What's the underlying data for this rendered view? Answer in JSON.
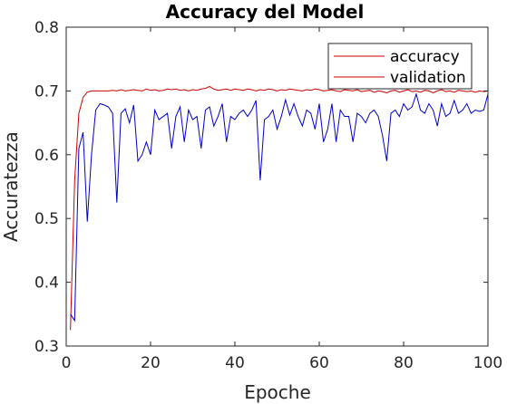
{
  "chart_data": {
    "type": "line",
    "title": "Accuracy del Model",
    "xlabel": "Epoche",
    "ylabel": "Accuratezza",
    "xlim": [
      0,
      100
    ],
    "ylim": [
      0.3,
      0.8
    ],
    "xticks": [
      0,
      20,
      40,
      60,
      80,
      100
    ],
    "yticks": [
      0.3,
      0.4,
      0.5,
      0.6,
      0.7,
      0.8
    ],
    "xtick_labels": [
      "0",
      "20",
      "40",
      "60",
      "80",
      "100"
    ],
    "ytick_labels": [
      "0.3",
      "0.4",
      "0.5",
      "0.6",
      "0.7",
      "0.8"
    ],
    "grid": false,
    "legend_position": "top-right",
    "series": [
      {
        "name": "accuracy",
        "color": "#cc0000",
        "x": [
          1,
          2,
          3,
          4,
          5,
          6,
          7,
          8,
          9,
          10,
          11,
          12,
          13,
          14,
          15,
          16,
          17,
          18,
          19,
          20,
          21,
          22,
          23,
          24,
          25,
          26,
          27,
          28,
          29,
          30,
          31,
          32,
          33,
          34,
          35,
          36,
          37,
          38,
          39,
          40,
          41,
          42,
          43,
          44,
          45,
          46,
          47,
          48,
          49,
          50,
          51,
          52,
          53,
          54,
          55,
          56,
          57,
          58,
          59,
          60,
          61,
          62,
          63,
          64,
          65,
          66,
          67,
          68,
          69,
          70,
          71,
          72,
          73,
          74,
          75,
          76,
          77,
          78,
          79,
          80,
          81,
          82,
          83,
          84,
          85,
          86,
          87,
          88,
          89,
          90,
          91,
          92,
          93,
          94,
          95,
          96,
          97,
          98,
          99,
          100
        ],
        "values": [
          0.325,
          0.56,
          0.665,
          0.69,
          0.698,
          0.7,
          0.7,
          0.7,
          0.7,
          0.7,
          0.701,
          0.7,
          0.702,
          0.7,
          0.701,
          0.702,
          0.701,
          0.7,
          0.703,
          0.701,
          0.702,
          0.7,
          0.701,
          0.703,
          0.702,
          0.703,
          0.701,
          0.702,
          0.7,
          0.702,
          0.701,
          0.703,
          0.704,
          0.707,
          0.703,
          0.701,
          0.702,
          0.703,
          0.701,
          0.703,
          0.702,
          0.701,
          0.703,
          0.702,
          0.7,
          0.702,
          0.701,
          0.703,
          0.702,
          0.7,
          0.702,
          0.701,
          0.703,
          0.702,
          0.701,
          0.7,
          0.702,
          0.701,
          0.703,
          0.702,
          0.7,
          0.701,
          0.702,
          0.7,
          0.699,
          0.702,
          0.701,
          0.7,
          0.702,
          0.699,
          0.7,
          0.701,
          0.698,
          0.7,
          0.699,
          0.697,
          0.7,
          0.701,
          0.698,
          0.7,
          0.702,
          0.699,
          0.7,
          0.698,
          0.701,
          0.7,
          0.697,
          0.7,
          0.702,
          0.699,
          0.7,
          0.698,
          0.701,
          0.7,
          0.699,
          0.7,
          0.698,
          0.7,
          0.699,
          0.7
        ]
      },
      {
        "name": "validation",
        "color": "#0000cc",
        "x": [
          1,
          2,
          3,
          4,
          5,
          6,
          7,
          8,
          9,
          10,
          11,
          12,
          13,
          14,
          15,
          16,
          17,
          18,
          19,
          20,
          21,
          22,
          23,
          24,
          25,
          26,
          27,
          28,
          29,
          30,
          31,
          32,
          33,
          34,
          35,
          36,
          37,
          38,
          39,
          40,
          41,
          42,
          43,
          44,
          45,
          46,
          47,
          48,
          49,
          50,
          51,
          52,
          53,
          54,
          55,
          56,
          57,
          58,
          59,
          60,
          61,
          62,
          63,
          64,
          65,
          66,
          67,
          68,
          69,
          70,
          71,
          72,
          73,
          74,
          75,
          76,
          77,
          78,
          79,
          80,
          81,
          82,
          83,
          84,
          85,
          86,
          87,
          88,
          89,
          90,
          91,
          92,
          93,
          94,
          95,
          96,
          97,
          98,
          99,
          100
        ],
        "values": [
          0.35,
          0.34,
          0.61,
          0.635,
          0.495,
          0.6,
          0.67,
          0.68,
          0.678,
          0.675,
          0.665,
          0.525,
          0.665,
          0.672,
          0.65,
          0.678,
          0.59,
          0.6,
          0.62,
          0.6,
          0.67,
          0.655,
          0.66,
          0.665,
          0.61,
          0.66,
          0.675,
          0.62,
          0.67,
          0.655,
          0.66,
          0.61,
          0.67,
          0.675,
          0.645,
          0.66,
          0.68,
          0.62,
          0.66,
          0.655,
          0.665,
          0.67,
          0.66,
          0.67,
          0.685,
          0.56,
          0.655,
          0.66,
          0.67,
          0.64,
          0.66,
          0.686,
          0.662,
          0.68,
          0.66,
          0.645,
          0.67,
          0.665,
          0.64,
          0.68,
          0.62,
          0.64,
          0.68,
          0.62,
          0.67,
          0.66,
          0.66,
          0.62,
          0.665,
          0.66,
          0.65,
          0.665,
          0.67,
          0.66,
          0.63,
          0.59,
          0.665,
          0.67,
          0.66,
          0.68,
          0.67,
          0.675,
          0.695,
          0.67,
          0.665,
          0.68,
          0.67,
          0.645,
          0.68,
          0.66,
          0.665,
          0.685,
          0.665,
          0.67,
          0.68,
          0.665,
          0.67,
          0.668,
          0.67,
          0.695
        ]
      }
    ]
  }
}
